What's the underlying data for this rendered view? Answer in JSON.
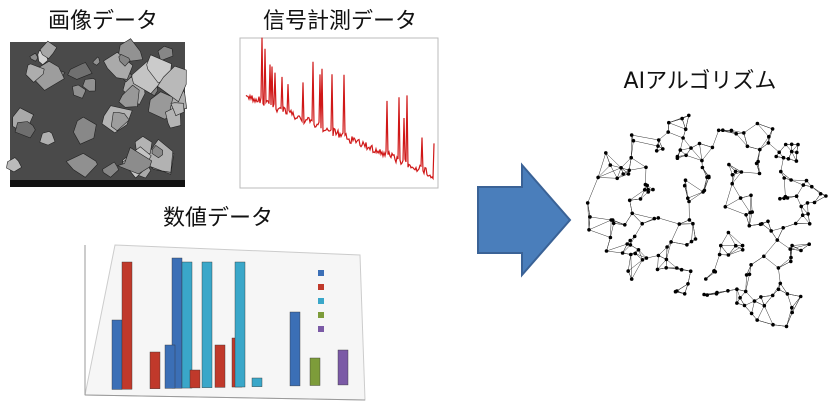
{
  "inputs": [
    {
      "label": "画像データ"
    },
    {
      "label": "信号計測データ"
    },
    {
      "label": "数値データ"
    }
  ],
  "output": {
    "label": "AIアルゴリズム"
  }
}
